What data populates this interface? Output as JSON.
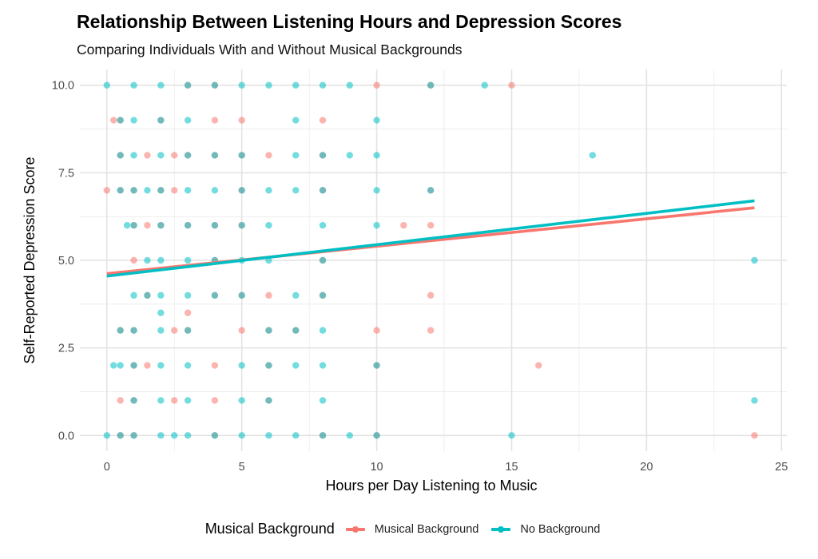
{
  "chart_data": {
    "type": "scatter",
    "title": "Relationship Between Listening Hours and Depression Scores",
    "subtitle": "Comparing Individuals With and Without Musical Backgrounds",
    "xlabel": "Hours per Day Listening to Music",
    "ylabel": "Self-Reported Depression Score",
    "xlim": [
      -1,
      25.2
    ],
    "ylim": [
      -0.45,
      10.45
    ],
    "x_ticks": [
      0,
      5,
      10,
      15,
      20,
      25
    ],
    "x_tick_labels": [
      "0",
      "5",
      "10",
      "15",
      "20",
      "25"
    ],
    "y_ticks": [
      0,
      2.5,
      5,
      7.5,
      10
    ],
    "y_tick_labels": [
      "0.0",
      "2.5",
      "5.0",
      "7.5",
      "10.0"
    ],
    "grid": true,
    "legend": {
      "title": "Musical Background",
      "position": "bottom"
    },
    "series": [
      {
        "name": "Musical Background",
        "color": "#F8766D",
        "points": [
          [
            3,
            10
          ],
          [
            4,
            10
          ],
          [
            10,
            10
          ],
          [
            12,
            10
          ],
          [
            15,
            10
          ],
          [
            0.25,
            9
          ],
          [
            0.5,
            9
          ],
          [
            2,
            9
          ],
          [
            4,
            9
          ],
          [
            5,
            9
          ],
          [
            8,
            9
          ],
          [
            0.5,
            8
          ],
          [
            1.5,
            8
          ],
          [
            2.5,
            8
          ],
          [
            3,
            8
          ],
          [
            4,
            8
          ],
          [
            5,
            8
          ],
          [
            6,
            8
          ],
          [
            8,
            8
          ],
          [
            0,
            7
          ],
          [
            0.5,
            7
          ],
          [
            1,
            7
          ],
          [
            2,
            7
          ],
          [
            2.5,
            7
          ],
          [
            5,
            7
          ],
          [
            8,
            7
          ],
          [
            12,
            7
          ],
          [
            1,
            6
          ],
          [
            1.5,
            6
          ],
          [
            2,
            6
          ],
          [
            3,
            6
          ],
          [
            4,
            6
          ],
          [
            5,
            6
          ],
          [
            11,
            6
          ],
          [
            12,
            6
          ],
          [
            1,
            5
          ],
          [
            4,
            5
          ],
          [
            8,
            5
          ],
          [
            1.5,
            4
          ],
          [
            4,
            4
          ],
          [
            5,
            4
          ],
          [
            6,
            4
          ],
          [
            8,
            4
          ],
          [
            12,
            4
          ],
          [
            3,
            3.5
          ],
          [
            0.5,
            3
          ],
          [
            1,
            3
          ],
          [
            2.5,
            3
          ],
          [
            3,
            3
          ],
          [
            5,
            3
          ],
          [
            6,
            3
          ],
          [
            7,
            3
          ],
          [
            10,
            3
          ],
          [
            12,
            3
          ],
          [
            1,
            2
          ],
          [
            1.5,
            2
          ],
          [
            4,
            2
          ],
          [
            6,
            2
          ],
          [
            10,
            2
          ],
          [
            16,
            2
          ],
          [
            0.5,
            1
          ],
          [
            1,
            1
          ],
          [
            2.5,
            1
          ],
          [
            4,
            1
          ],
          [
            6,
            1
          ],
          [
            0.5,
            0
          ],
          [
            1,
            0
          ],
          [
            4,
            0
          ],
          [
            8,
            0
          ],
          [
            10,
            0
          ],
          [
            24,
            0
          ]
        ],
        "trend": {
          "x": [
            0,
            24
          ],
          "y": [
            4.62,
            6.5
          ]
        }
      },
      {
        "name": "No Background",
        "color": "#00BFC4",
        "points": [
          [
            0,
            10
          ],
          [
            1,
            10
          ],
          [
            2,
            10
          ],
          [
            3,
            10
          ],
          [
            4,
            10
          ],
          [
            5,
            10
          ],
          [
            6,
            10
          ],
          [
            7,
            10
          ],
          [
            8,
            10
          ],
          [
            9,
            10
          ],
          [
            12,
            10
          ],
          [
            14,
            10
          ],
          [
            0.5,
            9
          ],
          [
            1,
            9
          ],
          [
            2,
            9
          ],
          [
            3,
            9
          ],
          [
            7,
            9
          ],
          [
            10,
            9
          ],
          [
            0.5,
            8
          ],
          [
            1,
            8
          ],
          [
            2,
            8
          ],
          [
            3,
            8
          ],
          [
            4,
            8
          ],
          [
            5,
            8
          ],
          [
            7,
            8
          ],
          [
            8,
            8
          ],
          [
            9,
            8
          ],
          [
            10,
            8
          ],
          [
            18,
            8
          ],
          [
            0.5,
            7
          ],
          [
            1,
            7
          ],
          [
            1.5,
            7
          ],
          [
            2,
            7
          ],
          [
            3,
            7
          ],
          [
            4,
            7
          ],
          [
            5,
            7
          ],
          [
            6,
            7
          ],
          [
            7,
            7
          ],
          [
            8,
            7
          ],
          [
            10,
            7
          ],
          [
            12,
            7
          ],
          [
            0.75,
            6
          ],
          [
            1,
            6
          ],
          [
            2,
            6
          ],
          [
            3,
            6
          ],
          [
            4,
            6
          ],
          [
            5,
            6
          ],
          [
            6,
            6
          ],
          [
            8,
            6
          ],
          [
            10,
            6
          ],
          [
            1.5,
            5
          ],
          [
            2,
            5
          ],
          [
            3,
            5
          ],
          [
            4,
            5
          ],
          [
            5,
            5
          ],
          [
            6,
            5
          ],
          [
            8,
            5
          ],
          [
            24,
            5
          ],
          [
            1,
            4
          ],
          [
            1.5,
            4
          ],
          [
            2,
            4
          ],
          [
            3,
            4
          ],
          [
            4,
            4
          ],
          [
            5,
            4
          ],
          [
            7,
            4
          ],
          [
            8,
            4
          ],
          [
            2,
            3.5
          ],
          [
            0.5,
            3
          ],
          [
            1,
            3
          ],
          [
            2,
            3
          ],
          [
            3,
            3
          ],
          [
            6,
            3
          ],
          [
            7,
            3
          ],
          [
            8,
            3
          ],
          [
            0.25,
            2
          ],
          [
            0.5,
            2
          ],
          [
            1,
            2
          ],
          [
            2,
            2
          ],
          [
            3,
            2
          ],
          [
            5,
            2
          ],
          [
            6,
            2
          ],
          [
            7,
            2
          ],
          [
            8,
            2
          ],
          [
            10,
            2
          ],
          [
            1,
            1
          ],
          [
            2,
            1
          ],
          [
            3,
            1
          ],
          [
            5,
            1
          ],
          [
            6,
            1
          ],
          [
            8,
            1
          ],
          [
            24,
            1
          ],
          [
            0,
            0
          ],
          [
            0.5,
            0
          ],
          [
            1,
            0
          ],
          [
            2,
            0
          ],
          [
            2.5,
            0
          ],
          [
            3,
            0
          ],
          [
            4,
            0
          ],
          [
            5,
            0
          ],
          [
            6,
            0
          ],
          [
            7,
            0
          ],
          [
            8,
            0
          ],
          [
            9,
            0
          ],
          [
            10,
            0
          ],
          [
            15,
            0
          ]
        ],
        "trend": {
          "x": [
            0,
            24
          ],
          "y": [
            4.55,
            6.7
          ]
        }
      }
    ]
  }
}
